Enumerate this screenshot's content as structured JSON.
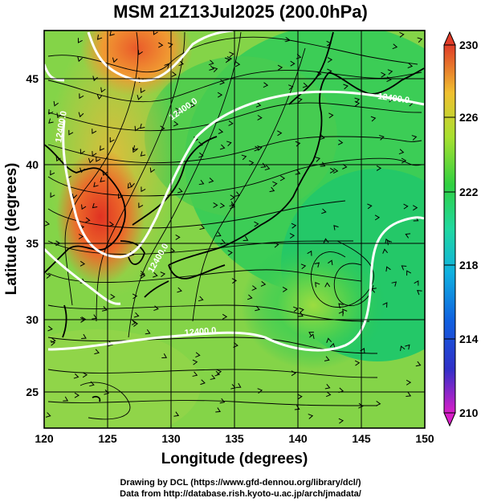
{
  "title": "MSM 21Z13Jul2025 (200.0hPa)",
  "map": {
    "xlabel": "Longitude (degrees)",
    "ylabel": "Latitude  (degrees)",
    "lon_ticks": [
      "120",
      "125",
      "130",
      "135",
      "140",
      "145",
      "150"
    ],
    "lat_ticks": [
      "25",
      "30",
      "35",
      "40",
      "45"
    ],
    "contour_labels": [
      "12400.0",
      "12400.0",
      "12400.0",
      "12400.0",
      "12400.0"
    ],
    "colorbar_ticks": [
      "230",
      "226",
      "222",
      "218",
      "214",
      "210"
    ]
  },
  "colors": {
    "hot": "#e0402a",
    "warm": "#f0a030",
    "mid": "#7ed04a",
    "cool": "#20c860",
    "contour": "#ffffff",
    "coast": "#000000"
  },
  "footer": {
    "line1": "Drawing by DCL (https://www.gfd-dennou.org/library/dcl/)",
    "line2": "Data from http://database.rish.kyoto-u.ac.jp/arch/jmadata/"
  }
}
